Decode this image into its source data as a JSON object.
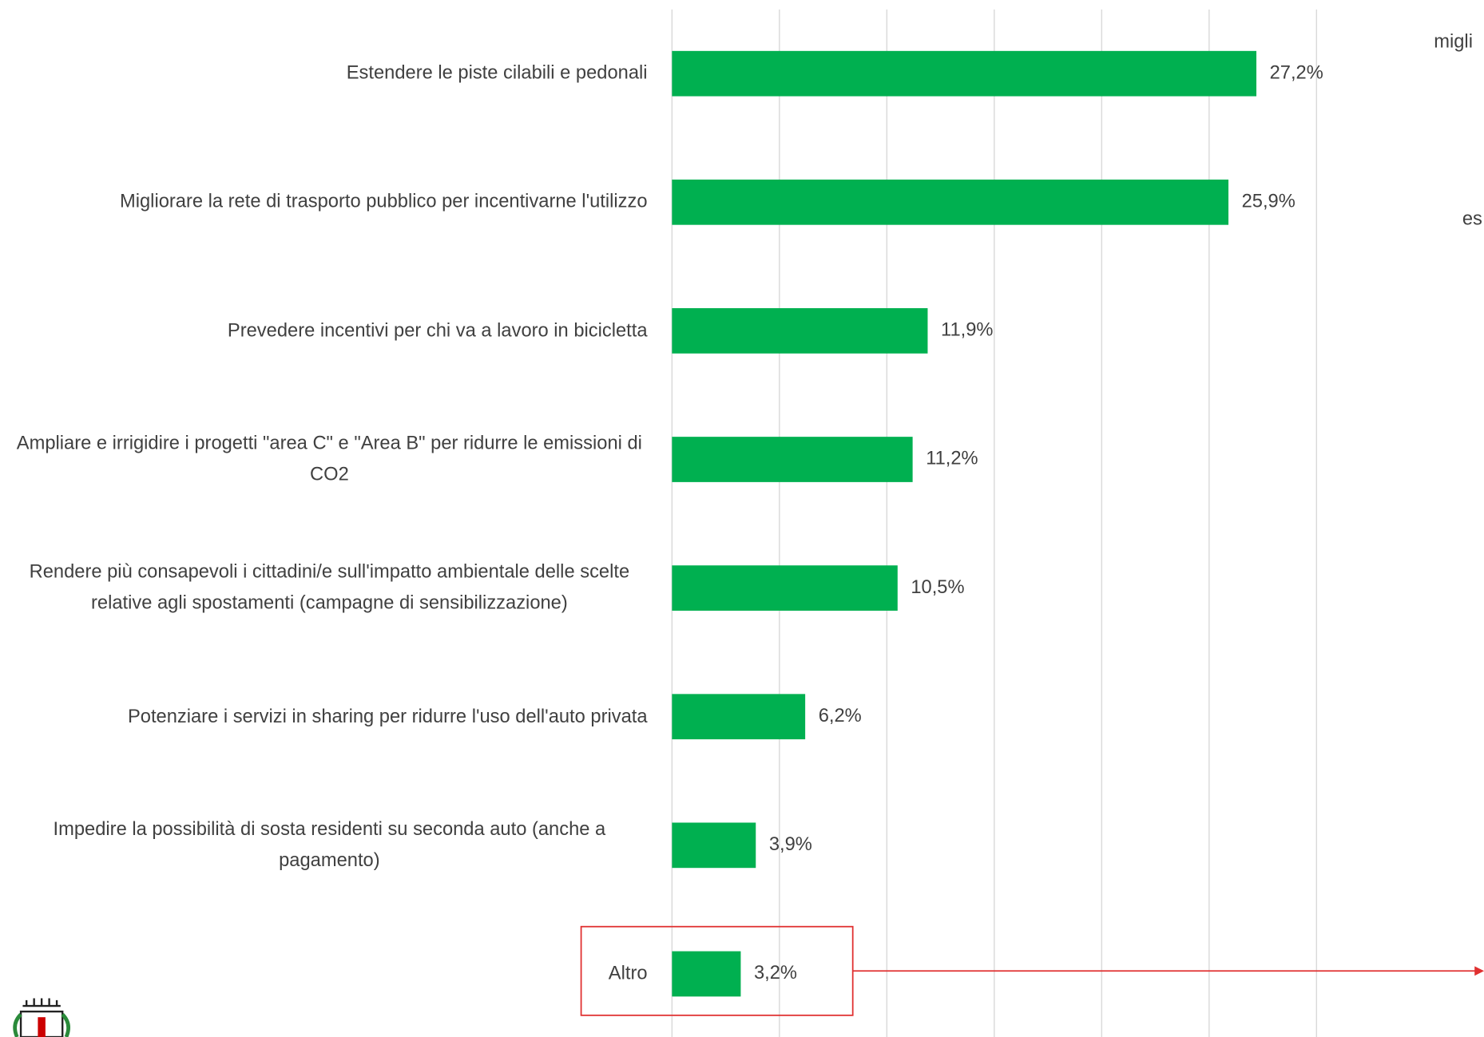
{
  "chart_data": {
    "type": "bar",
    "orientation": "horizontal",
    "categories": [
      "Estendere le piste cilabili e pedonali",
      "Migliorare la rete di trasporto pubblico per incentivarne l'utilizzo",
      "Prevedere incentivi per chi va a lavoro in bicicletta",
      "Ampliare e irrigidire i progetti \"area C\" e \"Area B\" per ridurre le emissioni di CO2",
      "Rendere più consapevoli i cittadini/e sull'impatto ambientale delle scelte relative agli spostamenti (campagne di sensibilizzazione)",
      "Potenziare i servizi in sharing per ridurre l'uso dell'auto privata",
      "Impedire la possibilità di sosta residenti su seconda auto (anche a pagamento)",
      "Altro"
    ],
    "values": [
      27.2,
      25.9,
      11.9,
      11.2,
      10.5,
      6.2,
      3.9,
      3.2
    ],
    "value_labels": [
      "27,2%",
      "25,9%",
      "11,9%",
      "11,2%",
      "10,5%",
      "6,2%",
      "3,9%",
      "3,2%"
    ],
    "color": "#00b050",
    "xlim": [
      0,
      30
    ],
    "xticks": [
      0,
      5,
      10,
      15,
      20,
      25,
      30
    ],
    "grid": true,
    "annotations": [
      "migli",
      "es"
    ]
  }
}
